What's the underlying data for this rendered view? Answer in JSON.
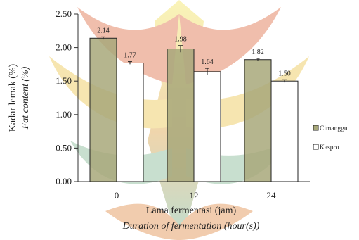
{
  "chart_data": {
    "type": "bar",
    "categories": [
      "0",
      "12",
      "24"
    ],
    "series": [
      {
        "name": "Cimanggu",
        "values": [
          2.14,
          1.98,
          1.82
        ],
        "errors": [
          0.02,
          0.05,
          0.02
        ],
        "color": "#a8a87a"
      },
      {
        "name": "Kaspro",
        "values": [
          1.77,
          1.64,
          1.5
        ],
        "errors": [
          0.02,
          0.05,
          0.02
        ],
        "color": "#ffffff"
      }
    ],
    "value_labels": [
      [
        "2.14",
        "1.98",
        "1.82"
      ],
      [
        "1.77",
        "1.64",
        "1.50"
      ]
    ],
    "yticks": [
      "0.00",
      "0.50",
      "1.00",
      "1.50",
      "2.00",
      "2.50"
    ],
    "ylim": [
      0,
      2.5
    ],
    "ylabel": "Kadar lemak (%)",
    "ylabel_en": "Fat content (%)",
    "xlabel": "Lama fermentasi (jam)",
    "xlabel_en": "Duration of fermentation (hour(s))",
    "legend_position": "right",
    "grid": false
  },
  "watermark_colors": {
    "top": "#f4e86a",
    "middle": "#d9a15a",
    "bottom": "#7fb29a",
    "leaf": "#d96d6d"
  }
}
